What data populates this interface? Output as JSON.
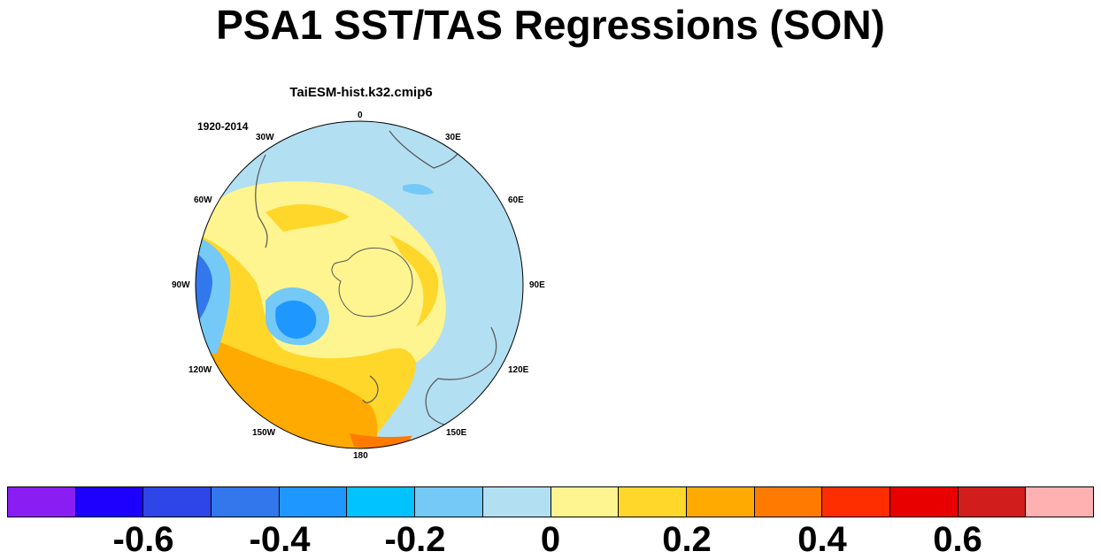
{
  "title": "PSA1 SST/TAS Regressions (SON)",
  "panel": {
    "model": "TaiESM-hist.k32.cmip6",
    "period": "1920-2014",
    "longitude_labels": [
      "0",
      "30E",
      "60E",
      "90E",
      "120E",
      "150E",
      "180",
      "150W",
      "120W",
      "90W",
      "60W",
      "30W"
    ]
  },
  "colorbar": {
    "colors": [
      "#8a1ef2",
      "#1d00ff",
      "#2e45e8",
      "#3277ec",
      "#1e97ff",
      "#00c3ff",
      "#74c9f6",
      "#b3dff2",
      "#fff590",
      "#ffd72a",
      "#ffaa00",
      "#ff7a00",
      "#ff2e00",
      "#e80000",
      "#d21d1d",
      "#ffb1b1"
    ],
    "labels": [
      "-0.6",
      "-0.4",
      "-0.2",
      "0",
      "0.2",
      "0.4",
      "0.6"
    ]
  }
}
